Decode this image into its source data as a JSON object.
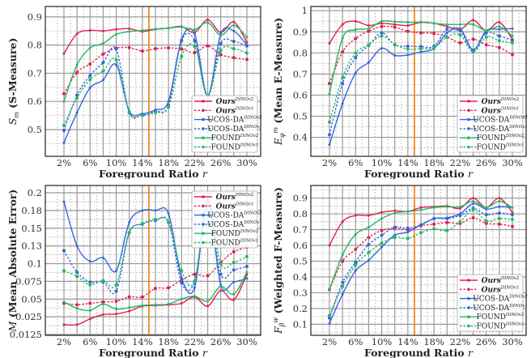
{
  "colors": {
    "ours": "#e0204e",
    "ucos": "#3366dd",
    "found": "#22b866",
    "marker_line": "#f08a24",
    "grid": "#999999"
  },
  "legend_labels": [
    {
      "name": "Ours",
      "sup": "DINOv2",
      "key": "ours",
      "style": "solid",
      "bold": true
    },
    {
      "name": "Ours",
      "sup": "DINOv1",
      "key": "ours",
      "style": "dashed",
      "bold": true
    },
    {
      "name": "UCOS-DA",
      "sup": "DINOv2",
      "key": "ucos",
      "style": "solid",
      "bold": false
    },
    {
      "name": "UCOS-DA",
      "sup": "DINOv1",
      "key": "ucos",
      "style": "dashed",
      "bold": false
    },
    {
      "name": "FOUND",
      "sup": "DINOv2",
      "key": "found",
      "style": "solid",
      "bold": false
    },
    {
      "name": "FOUND",
      "sup": "DINOv1",
      "key": "found",
      "style": "dashed",
      "bold": false
    }
  ],
  "chart_data": [
    {
      "type": "line",
      "xlabel": "Foreground Ratio r",
      "ylabel": {
        "symbol": "S",
        "sub": "m",
        "text": "(S-Measure)"
      },
      "x": [
        2,
        4,
        6,
        8,
        10,
        12,
        14,
        16,
        18,
        20,
        22,
        24,
        26,
        28,
        30
      ],
      "xticks": [
        "2%",
        "6%",
        "10%",
        "14%",
        "18%",
        "22%",
        "26%",
        "30%"
      ],
      "xtick_values": [
        2,
        6,
        10,
        14,
        18,
        22,
        26,
        30
      ],
      "yticks": [
        "0.5",
        "0.6",
        "0.7",
        "0.8",
        "0.9"
      ],
      "ytick_values": [
        0.5,
        0.6,
        0.7,
        0.8,
        0.9
      ],
      "ylim": [
        0.405,
        0.937
      ],
      "yscale": "linear",
      "vline_x": 15,
      "legend": "bottom-right",
      "grid": true,
      "series": [
        {
          "values": [
            0.77,
            0.84,
            0.852,
            0.85,
            0.856,
            0.858,
            0.848,
            0.856,
            0.86,
            0.866,
            0.845,
            0.89,
            0.845,
            0.882,
            0.81
          ]
        },
        {
          "values": [
            0.627,
            0.703,
            0.733,
            0.768,
            0.789,
            0.791,
            0.779,
            0.787,
            0.79,
            0.786,
            0.773,
            0.797,
            0.766,
            0.755,
            0.749
          ]
        },
        {
          "values": [
            0.453,
            0.56,
            0.648,
            0.676,
            0.73,
            0.565,
            0.556,
            0.57,
            0.6,
            0.82,
            0.84,
            0.62,
            0.84,
            0.85,
            0.8
          ]
        },
        {
          "values": [
            0.497,
            0.622,
            0.692,
            0.738,
            0.786,
            0.56,
            0.552,
            0.565,
            0.585,
            0.815,
            0.815,
            0.617,
            0.805,
            0.813,
            0.797
          ]
        },
        {
          "values": [
            0.6,
            0.73,
            0.79,
            0.806,
            0.838,
            0.848,
            0.852,
            0.857,
            0.86,
            0.864,
            0.855,
            0.88,
            0.835,
            0.87,
            0.828
          ]
        },
        {
          "values": [
            0.515,
            0.612,
            0.678,
            0.708,
            0.748,
            0.562,
            0.55,
            0.56,
            0.58,
            0.76,
            0.795,
            0.62,
            0.78,
            0.787,
            0.772
          ]
        }
      ]
    },
    {
      "type": "line",
      "xlabel": "Foreground Ratio r",
      "ylabel": {
        "symbol": "E",
        "sub": "φ",
        "sup": "m",
        "text": "(Mean E-Measure)"
      },
      "x": [
        2,
        4,
        6,
        8,
        10,
        12,
        14,
        16,
        18,
        20,
        22,
        24,
        26,
        28,
        30
      ],
      "xticks": [
        "2%",
        "6%",
        "10%",
        "14%",
        "18%",
        "22%",
        "26%",
        "30%"
      ],
      "xtick_values": [
        2,
        6,
        10,
        14,
        18,
        22,
        26,
        30
      ],
      "yticks": [
        "0.4",
        "0.5",
        "0.6",
        "0.7",
        "0.8",
        "0.9",
        "1"
      ],
      "ytick_values": [
        0.4,
        0.5,
        0.6,
        0.7,
        0.8,
        0.9,
        1.0
      ],
      "ylim": [
        0.31,
        1.02
      ],
      "yscale": "linear",
      "vline_x": 15,
      "legend": "bottom-right",
      "grid": true,
      "series": [
        {
          "values": [
            0.845,
            0.935,
            0.95,
            0.93,
            0.94,
            0.935,
            0.93,
            0.945,
            0.94,
            0.925,
            0.91,
            0.955,
            0.905,
            0.945,
            0.865
          ]
        },
        {
          "values": [
            0.655,
            0.805,
            0.868,
            0.903,
            0.925,
            0.922,
            0.902,
            0.895,
            0.892,
            0.875,
            0.848,
            0.865,
            0.838,
            0.825,
            0.792
          ]
        },
        {
          "values": [
            0.365,
            0.56,
            0.705,
            0.755,
            0.822,
            0.788,
            0.79,
            0.805,
            0.82,
            0.895,
            0.915,
            0.815,
            0.905,
            0.912,
            0.915
          ]
        },
        {
          "values": [
            0.412,
            0.655,
            0.778,
            0.835,
            0.895,
            0.838,
            0.832,
            0.83,
            0.832,
            0.912,
            0.905,
            0.81,
            0.895,
            0.88,
            0.86
          ]
        },
        {
          "values": [
            0.605,
            0.87,
            0.91,
            0.915,
            0.95,
            0.948,
            0.945,
            0.945,
            0.94,
            0.935,
            0.935,
            0.935,
            0.905,
            0.925,
            0.88
          ]
        },
        {
          "values": [
            0.472,
            0.683,
            0.8,
            0.838,
            0.88,
            0.84,
            0.818,
            0.82,
            0.825,
            0.875,
            0.885,
            0.805,
            0.875,
            0.858,
            0.848
          ]
        }
      ]
    },
    {
      "type": "line",
      "xlabel": "Foreground Ratio r",
      "ylabel": {
        "symbol": "M",
        "text": "(Mean Absolute Error)"
      },
      "x": [
        2,
        4,
        6,
        8,
        10,
        12,
        14,
        16,
        18,
        20,
        22,
        24,
        26,
        28,
        30
      ],
      "xticks": [
        "2%",
        "6%",
        "10%",
        "14%",
        "18%",
        "22%",
        "26%",
        "30%"
      ],
      "xtick_values": [
        2,
        6,
        10,
        14,
        18,
        22,
        26,
        30
      ],
      "yticks": [
        "0.0125",
        "0.025",
        "0.05",
        "0.075",
        "0.1",
        "0.13",
        "0.15",
        "0.18",
        "0.2"
      ],
      "ytick_values": [
        0.0125,
        0.025,
        0.05,
        0.075,
        0.1,
        0.13,
        0.15,
        0.18,
        0.2
      ],
      "yscale": "custom-ticks",
      "vline_x": 15,
      "legend": "top-right",
      "grid": true,
      "series": [
        {
          "values": [
            0.0195,
            0.0195,
            0.0235,
            0.028,
            0.029,
            0.033,
            0.04,
            0.041,
            0.042,
            0.044,
            0.053,
            0.04,
            0.062,
            0.049,
            0.085
          ]
        },
        {
          "values": [
            0.044,
            0.042,
            0.044,
            0.046,
            0.047,
            0.053,
            0.053,
            0.065,
            0.066,
            0.077,
            0.085,
            0.083,
            0.102,
            0.12,
            0.128
          ]
        },
        {
          "values": [
            0.19,
            0.13,
            0.104,
            0.11,
            0.09,
            0.16,
            0.18,
            0.18,
            0.175,
            0.08,
            0.066,
            0.19,
            0.07,
            0.074,
            0.079
          ]
        },
        {
          "values": [
            0.122,
            0.088,
            0.074,
            0.074,
            0.061,
            0.145,
            0.157,
            0.163,
            0.16,
            0.073,
            0.075,
            0.185,
            0.085,
            0.091,
            0.096
          ]
        },
        {
          "values": [
            0.046,
            0.037,
            0.034,
            0.043,
            0.036,
            0.038,
            0.041,
            0.042,
            0.043,
            0.05,
            0.054,
            0.047,
            0.068,
            0.057,
            0.088
          ]
        },
        {
          "values": [
            0.09,
            0.082,
            0.07,
            0.076,
            0.07,
            0.145,
            0.158,
            0.165,
            0.16,
            0.09,
            0.075,
            0.192,
            0.1,
            0.102,
            0.112
          ]
        }
      ]
    },
    {
      "type": "line",
      "xlabel": "Foreground Ratio r",
      "ylabel": {
        "symbol": "F",
        "sub": "β",
        "sup": "w",
        "text": "(Weighted F-Measure)"
      },
      "x": [
        2,
        4,
        6,
        8,
        10,
        12,
        14,
        16,
        18,
        20,
        22,
        24,
        26,
        28,
        30
      ],
      "xticks": [
        "2%",
        "6%",
        "10%",
        "14%",
        "18%",
        "22%",
        "26%",
        "30%"
      ],
      "xtick_values": [
        2,
        6,
        10,
        14,
        18,
        22,
        26,
        30
      ],
      "yticks": [
        "0.1",
        "0.2",
        "0.3",
        "0.4",
        "0.5",
        "0.6",
        "0.7",
        "0.8",
        "0.9"
      ],
      "ytick_values": [
        0.1,
        0.2,
        0.3,
        0.4,
        0.5,
        0.6,
        0.7,
        0.8,
        0.9
      ],
      "ylim": [
        0.03,
        0.98
      ],
      "yscale": "linear",
      "vline_x": 15,
      "legend": "bottom-right",
      "grid": true,
      "series": [
        {
          "values": [
            0.6,
            0.75,
            0.79,
            0.79,
            0.81,
            0.82,
            0.815,
            0.84,
            0.845,
            0.85,
            0.835,
            0.9,
            0.84,
            0.9,
            0.81
          ]
        },
        {
          "values": [
            0.32,
            0.5,
            0.575,
            0.65,
            0.695,
            0.71,
            0.7,
            0.725,
            0.735,
            0.745,
            0.74,
            0.775,
            0.74,
            0.735,
            0.72
          ]
        },
        {
          "values": [
            0.105,
            0.29,
            0.44,
            0.505,
            0.59,
            0.665,
            0.685,
            0.73,
            0.77,
            0.775,
            0.8,
            0.865,
            0.83,
            0.845,
            0.84
          ]
        },
        {
          "values": [
            0.14,
            0.365,
            0.495,
            0.605,
            0.665,
            0.715,
            0.71,
            0.73,
            0.77,
            0.77,
            0.79,
            0.835,
            0.795,
            0.805,
            0.795
          ]
        },
        {
          "values": [
            0.32,
            0.54,
            0.67,
            0.715,
            0.77,
            0.805,
            0.815,
            0.825,
            0.84,
            0.845,
            0.845,
            0.88,
            0.84,
            0.88,
            0.84
          ]
        },
        {
          "values": [
            0.155,
            0.34,
            0.475,
            0.555,
            0.615,
            0.65,
            0.645,
            0.68,
            0.705,
            0.695,
            0.75,
            0.825,
            0.755,
            0.77,
            0.765
          ]
        }
      ]
    }
  ]
}
